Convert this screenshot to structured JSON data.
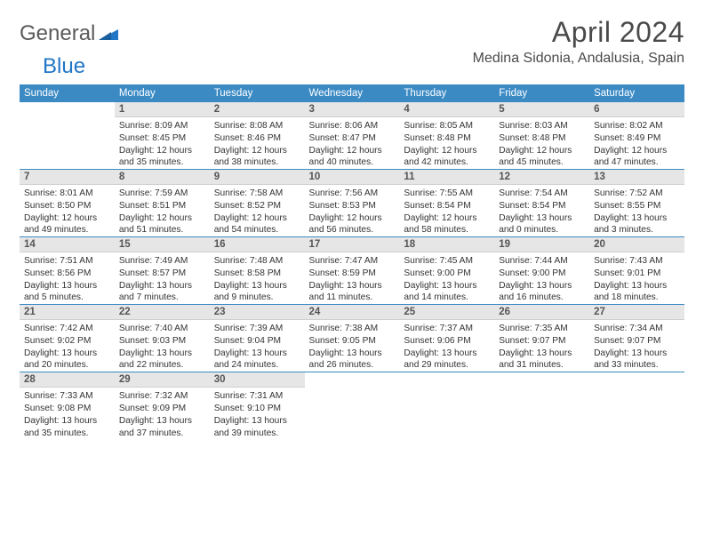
{
  "brand": {
    "first": "General",
    "second": "Blue"
  },
  "title": "April 2024",
  "location": "Medina Sidonia, Andalusia, Spain",
  "colors": {
    "header_bg": "#3b8ac4",
    "header_text": "#ffffff",
    "daynum_bg": "#e6e6e6",
    "rule": "#3b8ac4",
    "text": "#333333",
    "logo_gray": "#5a5a5a",
    "logo_blue": "#2176c7"
  },
  "typography": {
    "title_fontsize": 32,
    "location_fontsize": 16,
    "header_fontsize": 11.5,
    "daynum_fontsize": 11.5,
    "info_fontsize": 10.2
  },
  "day_headers": [
    "Sunday",
    "Monday",
    "Tuesday",
    "Wednesday",
    "Thursday",
    "Friday",
    "Saturday"
  ],
  "weeks": [
    [
      null,
      {
        "n": "1",
        "sr": "8:09 AM",
        "ss": "8:45 PM",
        "dh": "12",
        "dm": "35"
      },
      {
        "n": "2",
        "sr": "8:08 AM",
        "ss": "8:46 PM",
        "dh": "12",
        "dm": "38"
      },
      {
        "n": "3",
        "sr": "8:06 AM",
        "ss": "8:47 PM",
        "dh": "12",
        "dm": "40"
      },
      {
        "n": "4",
        "sr": "8:05 AM",
        "ss": "8:48 PM",
        "dh": "12",
        "dm": "42"
      },
      {
        "n": "5",
        "sr": "8:03 AM",
        "ss": "8:48 PM",
        "dh": "12",
        "dm": "45"
      },
      {
        "n": "6",
        "sr": "8:02 AM",
        "ss": "8:49 PM",
        "dh": "12",
        "dm": "47"
      }
    ],
    [
      {
        "n": "7",
        "sr": "8:01 AM",
        "ss": "8:50 PM",
        "dh": "12",
        "dm": "49"
      },
      {
        "n": "8",
        "sr": "7:59 AM",
        "ss": "8:51 PM",
        "dh": "12",
        "dm": "51"
      },
      {
        "n": "9",
        "sr": "7:58 AM",
        "ss": "8:52 PM",
        "dh": "12",
        "dm": "54"
      },
      {
        "n": "10",
        "sr": "7:56 AM",
        "ss": "8:53 PM",
        "dh": "12",
        "dm": "56"
      },
      {
        "n": "11",
        "sr": "7:55 AM",
        "ss": "8:54 PM",
        "dh": "12",
        "dm": "58"
      },
      {
        "n": "12",
        "sr": "7:54 AM",
        "ss": "8:54 PM",
        "dh": "13",
        "dm": "0"
      },
      {
        "n": "13",
        "sr": "7:52 AM",
        "ss": "8:55 PM",
        "dh": "13",
        "dm": "3"
      }
    ],
    [
      {
        "n": "14",
        "sr": "7:51 AM",
        "ss": "8:56 PM",
        "dh": "13",
        "dm": "5"
      },
      {
        "n": "15",
        "sr": "7:49 AM",
        "ss": "8:57 PM",
        "dh": "13",
        "dm": "7"
      },
      {
        "n": "16",
        "sr": "7:48 AM",
        "ss": "8:58 PM",
        "dh": "13",
        "dm": "9"
      },
      {
        "n": "17",
        "sr": "7:47 AM",
        "ss": "8:59 PM",
        "dh": "13",
        "dm": "11"
      },
      {
        "n": "18",
        "sr": "7:45 AM",
        "ss": "9:00 PM",
        "dh": "13",
        "dm": "14"
      },
      {
        "n": "19",
        "sr": "7:44 AM",
        "ss": "9:00 PM",
        "dh": "13",
        "dm": "16"
      },
      {
        "n": "20",
        "sr": "7:43 AM",
        "ss": "9:01 PM",
        "dh": "13",
        "dm": "18"
      }
    ],
    [
      {
        "n": "21",
        "sr": "7:42 AM",
        "ss": "9:02 PM",
        "dh": "13",
        "dm": "20"
      },
      {
        "n": "22",
        "sr": "7:40 AM",
        "ss": "9:03 PM",
        "dh": "13",
        "dm": "22"
      },
      {
        "n": "23",
        "sr": "7:39 AM",
        "ss": "9:04 PM",
        "dh": "13",
        "dm": "24"
      },
      {
        "n": "24",
        "sr": "7:38 AM",
        "ss": "9:05 PM",
        "dh": "13",
        "dm": "26"
      },
      {
        "n": "25",
        "sr": "7:37 AM",
        "ss": "9:06 PM",
        "dh": "13",
        "dm": "29"
      },
      {
        "n": "26",
        "sr": "7:35 AM",
        "ss": "9:07 PM",
        "dh": "13",
        "dm": "31"
      },
      {
        "n": "27",
        "sr": "7:34 AM",
        "ss": "9:07 PM",
        "dh": "13",
        "dm": "33"
      }
    ],
    [
      {
        "n": "28",
        "sr": "7:33 AM",
        "ss": "9:08 PM",
        "dh": "13",
        "dm": "35"
      },
      {
        "n": "29",
        "sr": "7:32 AM",
        "ss": "9:09 PM",
        "dh": "13",
        "dm": "37"
      },
      {
        "n": "30",
        "sr": "7:31 AM",
        "ss": "9:10 PM",
        "dh": "13",
        "dm": "39"
      },
      null,
      null,
      null,
      null
    ]
  ],
  "labels": {
    "sunrise_prefix": "Sunrise: ",
    "sunset_prefix": "Sunset: ",
    "daylight_prefix": "Daylight: ",
    "hours_word": " hours",
    "and_word": "and ",
    "minutes_word": " minutes."
  }
}
